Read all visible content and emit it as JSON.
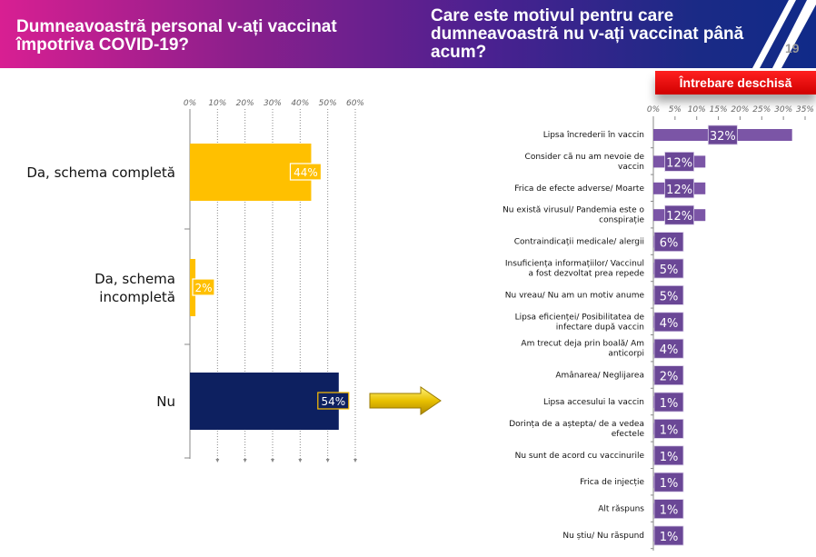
{
  "header": {
    "question_left": "Dumneavoastră personal v-ați vaccinat împotriva COVID-19?",
    "question_right": "Care este motivul pentru care dumneavoastră nu v-ați vaccinat până acum?",
    "page_number": "19",
    "badge": "Întrebare deschisă"
  },
  "colors": {
    "left_yellow": "#ffc000",
    "left_navy": "#0d2060",
    "right_purple": "#7b55a6"
  },
  "chart_data": [
    {
      "type": "bar",
      "orientation": "horizontal",
      "title": "Dumneavoastră personal v-ați vaccinat împotriva COVID-19?",
      "categories": [
        "Da, schema completă",
        "Da, schema incompletă",
        "Nu"
      ],
      "values": [
        44,
        2,
        54
      ],
      "labels": [
        "44%",
        "2%",
        "54%"
      ],
      "xlim": [
        0,
        60
      ],
      "xticks": [
        "0%",
        "10%",
        "20%",
        "30%",
        "40%",
        "50%",
        "60%"
      ],
      "grid": true
    },
    {
      "type": "bar",
      "orientation": "horizontal",
      "title": "Care este motivul pentru care dumneavoastră nu v-ați vaccinat până acum?",
      "categories": [
        "Lipsa încrederii în vaccin",
        "Consider că nu am nevoie de vaccin",
        "Frica de efecte adverse/ Moarte",
        "Nu există virusul/ Pandemia este o conspirație",
        "Contraindicații medicale/ alergii",
        "Insuficiența informațiilor/ Vaccinul a fost dezvoltat prea repede",
        "Nu vreau/ Nu am un motiv anume",
        "Lipsa eficienței/ Posibilitatea de infectare după vaccin",
        "Am trecut deja prin boală/ Am anticorpi",
        "Amânarea/ Neglijarea",
        "Lipsa accesului la vaccin",
        "Dorința de a aștepta/ de a vedea efectele",
        "Nu sunt de acord cu vaccinurile",
        "Frica de injecție",
        "Alt răspuns",
        "Nu știu/ Nu răspund"
      ],
      "values": [
        32,
        12,
        12,
        12,
        6,
        5,
        5,
        4,
        4,
        2,
        1,
        1,
        1,
        1,
        1,
        1
      ],
      "labels": [
        "32%",
        "12%",
        "12%",
        "12%",
        "6%",
        "5%",
        "5%",
        "4%",
        "4%",
        "2%",
        "1%",
        "1%",
        "1%",
        "1%",
        "1%",
        "1%"
      ],
      "xlim": [
        0,
        35
      ],
      "xticks": [
        "0%",
        "5%",
        "10%",
        "15%",
        "20%",
        "25%",
        "30%",
        "35%"
      ],
      "grid": false
    }
  ]
}
